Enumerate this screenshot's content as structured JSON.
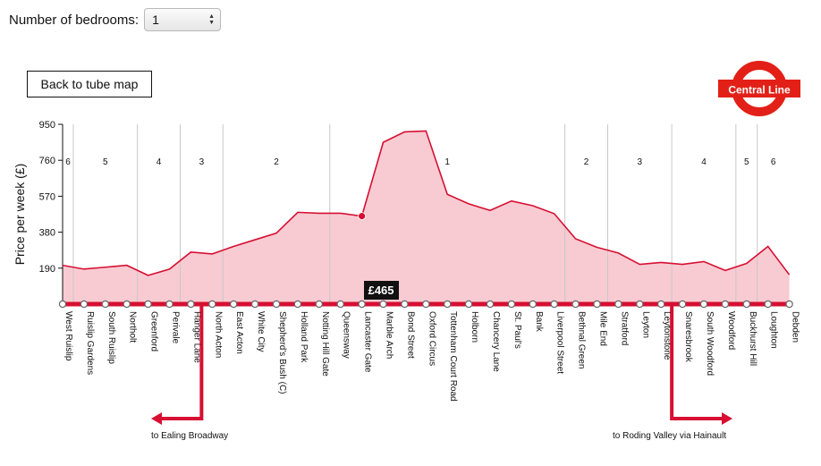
{
  "controls": {
    "bedrooms_label": "Number of bedrooms:",
    "bedrooms_value": "1",
    "back_label": "Back to tube map"
  },
  "roundel": {
    "text": "Central Line",
    "color": "#E32017",
    "bar_color": "#E32017"
  },
  "tooltip": {
    "text": "£465",
    "station": "Lancaster Gate"
  },
  "branches": {
    "left": "to Ealing Broadway",
    "right": "to Roding Valley via Hainault"
  },
  "colors": {
    "line": "#D70F32",
    "fill": "#F8CBD3",
    "grid": "#c8c8c8"
  },
  "chart_data": {
    "type": "area",
    "ylabel": "Price per week (£)",
    "ylim": [
      0,
      950
    ],
    "yticks": [
      190,
      380,
      570,
      760,
      950
    ],
    "stations": [
      "West Ruislip",
      "Ruislip Gardens",
      "South Ruislip",
      "Northolt",
      "Greenford",
      "Perivale",
      "Hanger Lane",
      "North Acton",
      "East Acton",
      "White City",
      "Shepherd's Bush (C)",
      "Holland Park",
      "Notting Hill Gate",
      "Queensway",
      "Lancaster Gate",
      "Marble Arch",
      "Bond Street",
      "Oxford Circus",
      "Tottenham Court Road",
      "Holborn",
      "Chancery Lane",
      "St. Paul's",
      "Bank",
      "Liverpool Street",
      "Bethnal Green",
      "Mile End",
      "Stratford",
      "Leyton",
      "Leytonstone",
      "Snaresbrook",
      "South Woodford",
      "Woodford",
      "Buckhurst Hill",
      "Loughton",
      "Debden"
    ],
    "values": [
      205,
      185,
      195,
      205,
      152,
      185,
      275,
      265,
      305,
      340,
      375,
      485,
      480,
      480,
      465,
      855,
      910,
      915,
      580,
      530,
      495,
      545,
      520,
      478,
      345,
      300,
      270,
      210,
      220,
      210,
      225,
      178,
      215,
      305,
      155
    ],
    "highlight_index": 14,
    "zones": [
      "6",
      "5",
      "4",
      "3",
      "2",
      "1",
      "2",
      "3",
      "4",
      "5",
      "6"
    ],
    "zone_boundaries": [
      0.5,
      3.5,
      5.5,
      7.5,
      12.5,
      23.5,
      25.5,
      28.5,
      31.5,
      32.5
    ]
  }
}
